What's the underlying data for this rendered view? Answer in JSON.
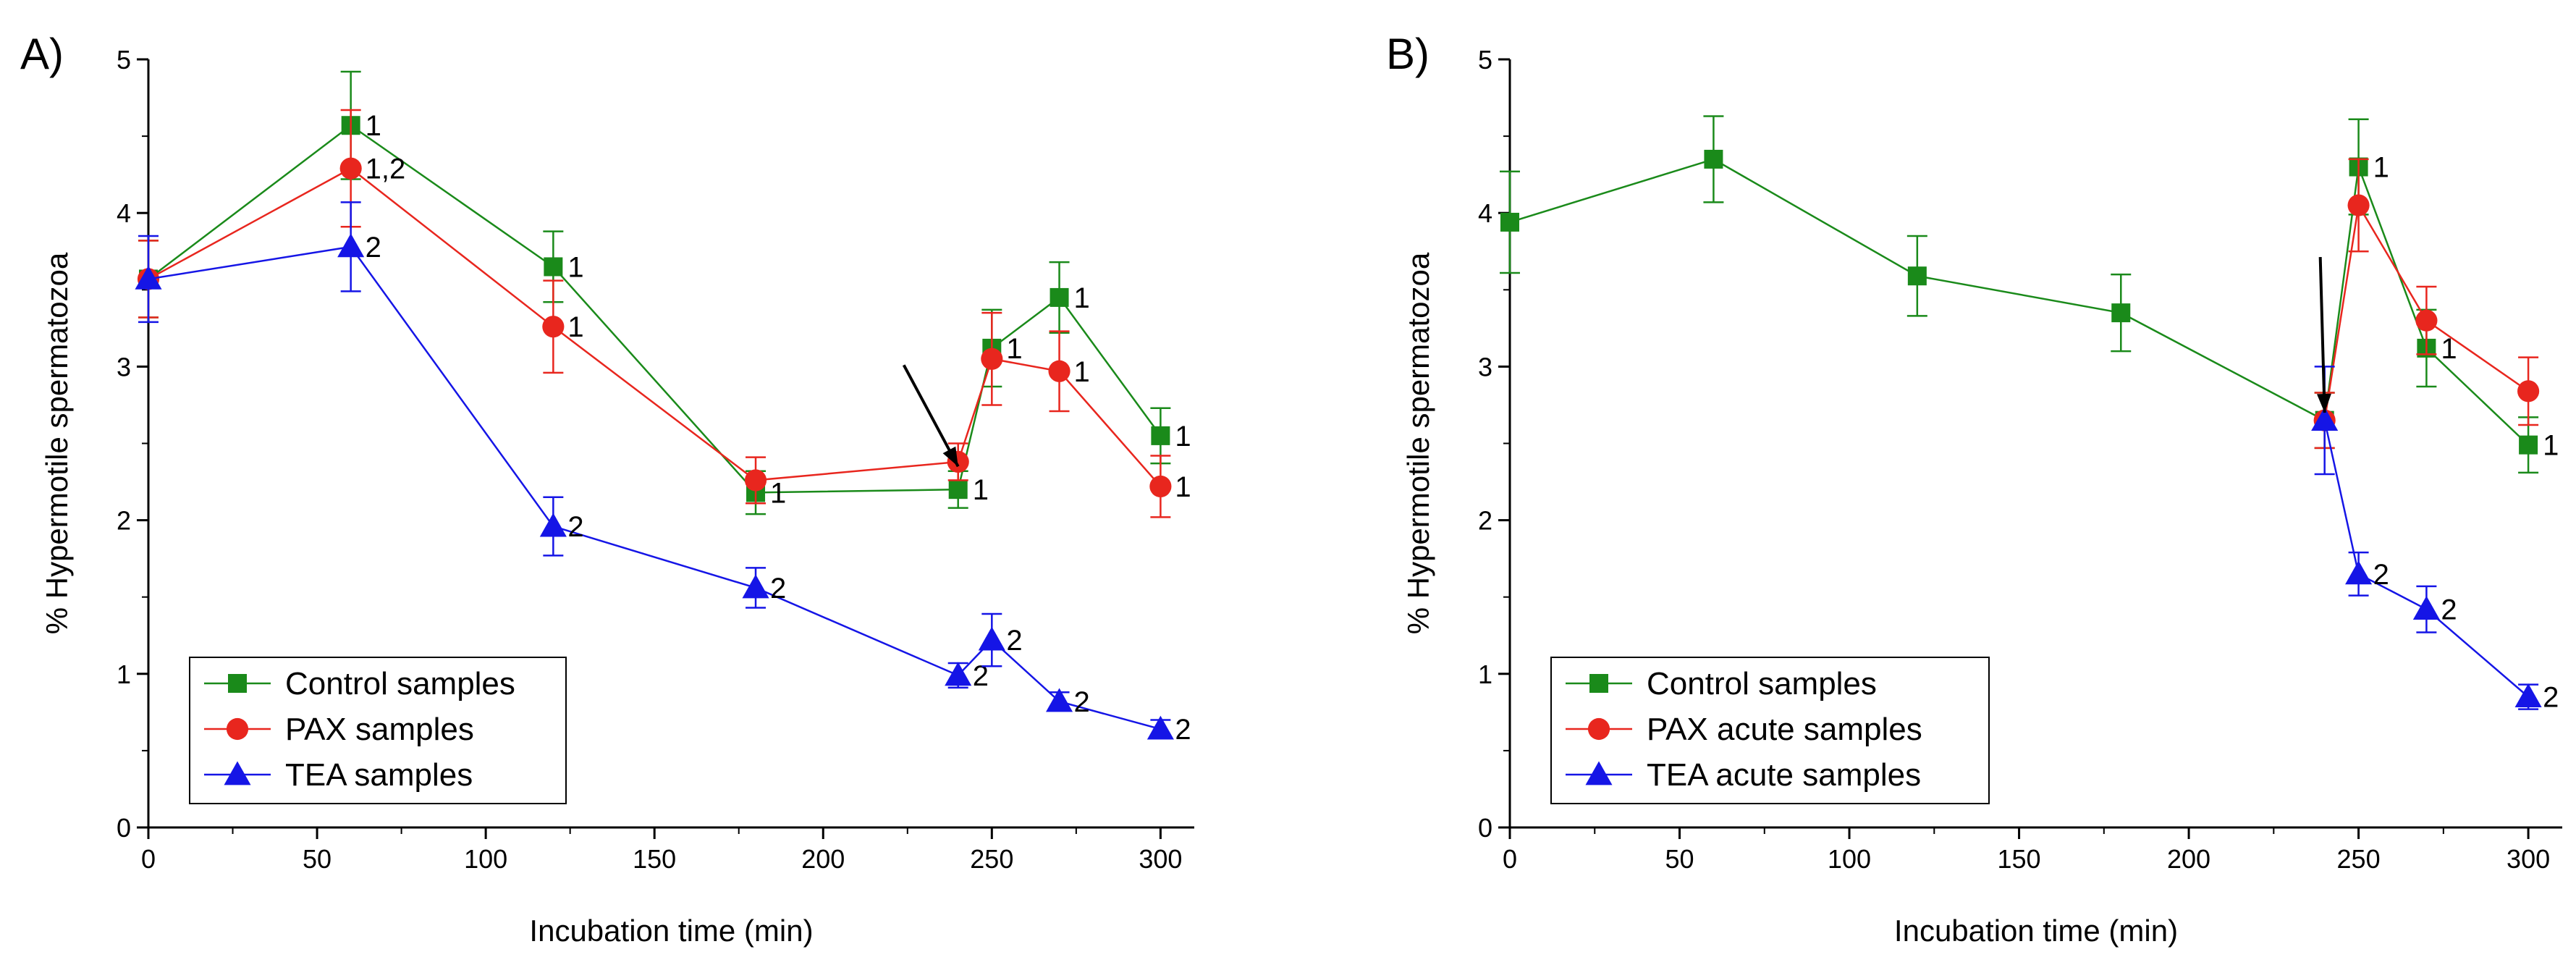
{
  "chart_data": [
    {
      "panel": "A)",
      "type": "line",
      "xlabel": "Incubation time (min)",
      "ylabel": "% Hypermotile spermatozoa",
      "xlim": [
        0,
        310
      ],
      "ylim": [
        0,
        5
      ],
      "xticks": [
        0,
        50,
        100,
        150,
        200,
        250,
        300
      ],
      "yticks": [
        0,
        1,
        2,
        3,
        4,
        5
      ],
      "legend_position": "bottom-left",
      "arrow_annotation": {
        "target_x": 240,
        "target_y": 2.35
      },
      "series": [
        {
          "name": "Control samples",
          "color": "#1a8a1a",
          "marker": "square",
          "x": [
            0,
            60,
            120,
            180,
            240,
            250,
            270,
            300
          ],
          "values": [
            3.57,
            4.57,
            3.65,
            2.18,
            2.2,
            3.12,
            3.45,
            2.55
          ],
          "errors": [
            0.25,
            0.35,
            0.23,
            0.14,
            0.12,
            0.25,
            0.23,
            0.18
          ],
          "labels": [
            "",
            "1",
            "1",
            "1",
            "1",
            "1",
            "1",
            "1"
          ]
        },
        {
          "name": "PAX samples",
          "color": "#e8261e",
          "marker": "circle",
          "x": [
            0,
            60,
            120,
            180,
            240,
            250,
            270,
            300
          ],
          "values": [
            3.57,
            4.29,
            3.26,
            2.26,
            2.38,
            3.05,
            2.97,
            2.22
          ],
          "errors": [
            0.25,
            0.38,
            0.3,
            0.15,
            0.12,
            0.3,
            0.26,
            0.2
          ],
          "labels": [
            "",
            "1,2",
            "1",
            "",
            "",
            "",
            "1",
            "1"
          ]
        },
        {
          "name": "TEA samples",
          "color": "#1515e6",
          "marker": "triangle",
          "x": [
            0,
            60,
            120,
            180,
            240,
            250,
            270,
            300
          ],
          "values": [
            3.57,
            3.78,
            1.96,
            1.56,
            0.99,
            1.22,
            0.82,
            0.64
          ],
          "errors": [
            0.28,
            0.29,
            0.19,
            0.13,
            0.08,
            0.17,
            0.06,
            0.06
          ],
          "labels": [
            "",
            "2",
            "2",
            "2",
            "2",
            "2",
            "2",
            "2"
          ]
        }
      ]
    },
    {
      "panel": "B)",
      "type": "line",
      "xlabel": "Incubation time (min)",
      "ylabel": "% Hypermotile spermatozoa",
      "xlim": [
        0,
        310
      ],
      "ylim": [
        0,
        5
      ],
      "xticks": [
        0,
        50,
        100,
        150,
        200,
        250,
        300
      ],
      "yticks": [
        0,
        1,
        2,
        3,
        4,
        5
      ],
      "legend_position": "bottom-left",
      "arrow_annotation": {
        "target_x": 240,
        "target_y": 2.7
      },
      "series": [
        {
          "name": "Control samples",
          "color": "#1a8a1a",
          "marker": "square",
          "x": [
            0,
            60,
            120,
            180,
            240,
            250,
            270,
            300
          ],
          "values": [
            3.94,
            4.35,
            3.59,
            3.35,
            2.65,
            4.3,
            3.12,
            2.49
          ],
          "errors": [
            0.33,
            0.28,
            0.26,
            0.25,
            0.18,
            0.31,
            0.25,
            0.18
          ],
          "labels": [
            "",
            "",
            "",
            "",
            "",
            "1",
            "1",
            "1"
          ]
        },
        {
          "name": "PAX acute samples",
          "color": "#e8261e",
          "marker": "circle",
          "x": [
            240,
            250,
            270,
            300
          ],
          "values": [
            2.65,
            4.05,
            3.3,
            2.84
          ],
          "errors": [
            0.18,
            0.3,
            0.22,
            0.22
          ],
          "labels": [
            "",
            "",
            "",
            ""
          ]
        },
        {
          "name": "TEA acute samples",
          "color": "#1515e6",
          "marker": "triangle",
          "x": [
            240,
            250,
            270,
            300
          ],
          "values": [
            2.65,
            1.65,
            1.42,
            0.85
          ],
          "errors": [
            0.35,
            0.14,
            0.15,
            0.08
          ],
          "labels": [
            "",
            "2",
            "2",
            "2"
          ]
        }
      ]
    }
  ]
}
